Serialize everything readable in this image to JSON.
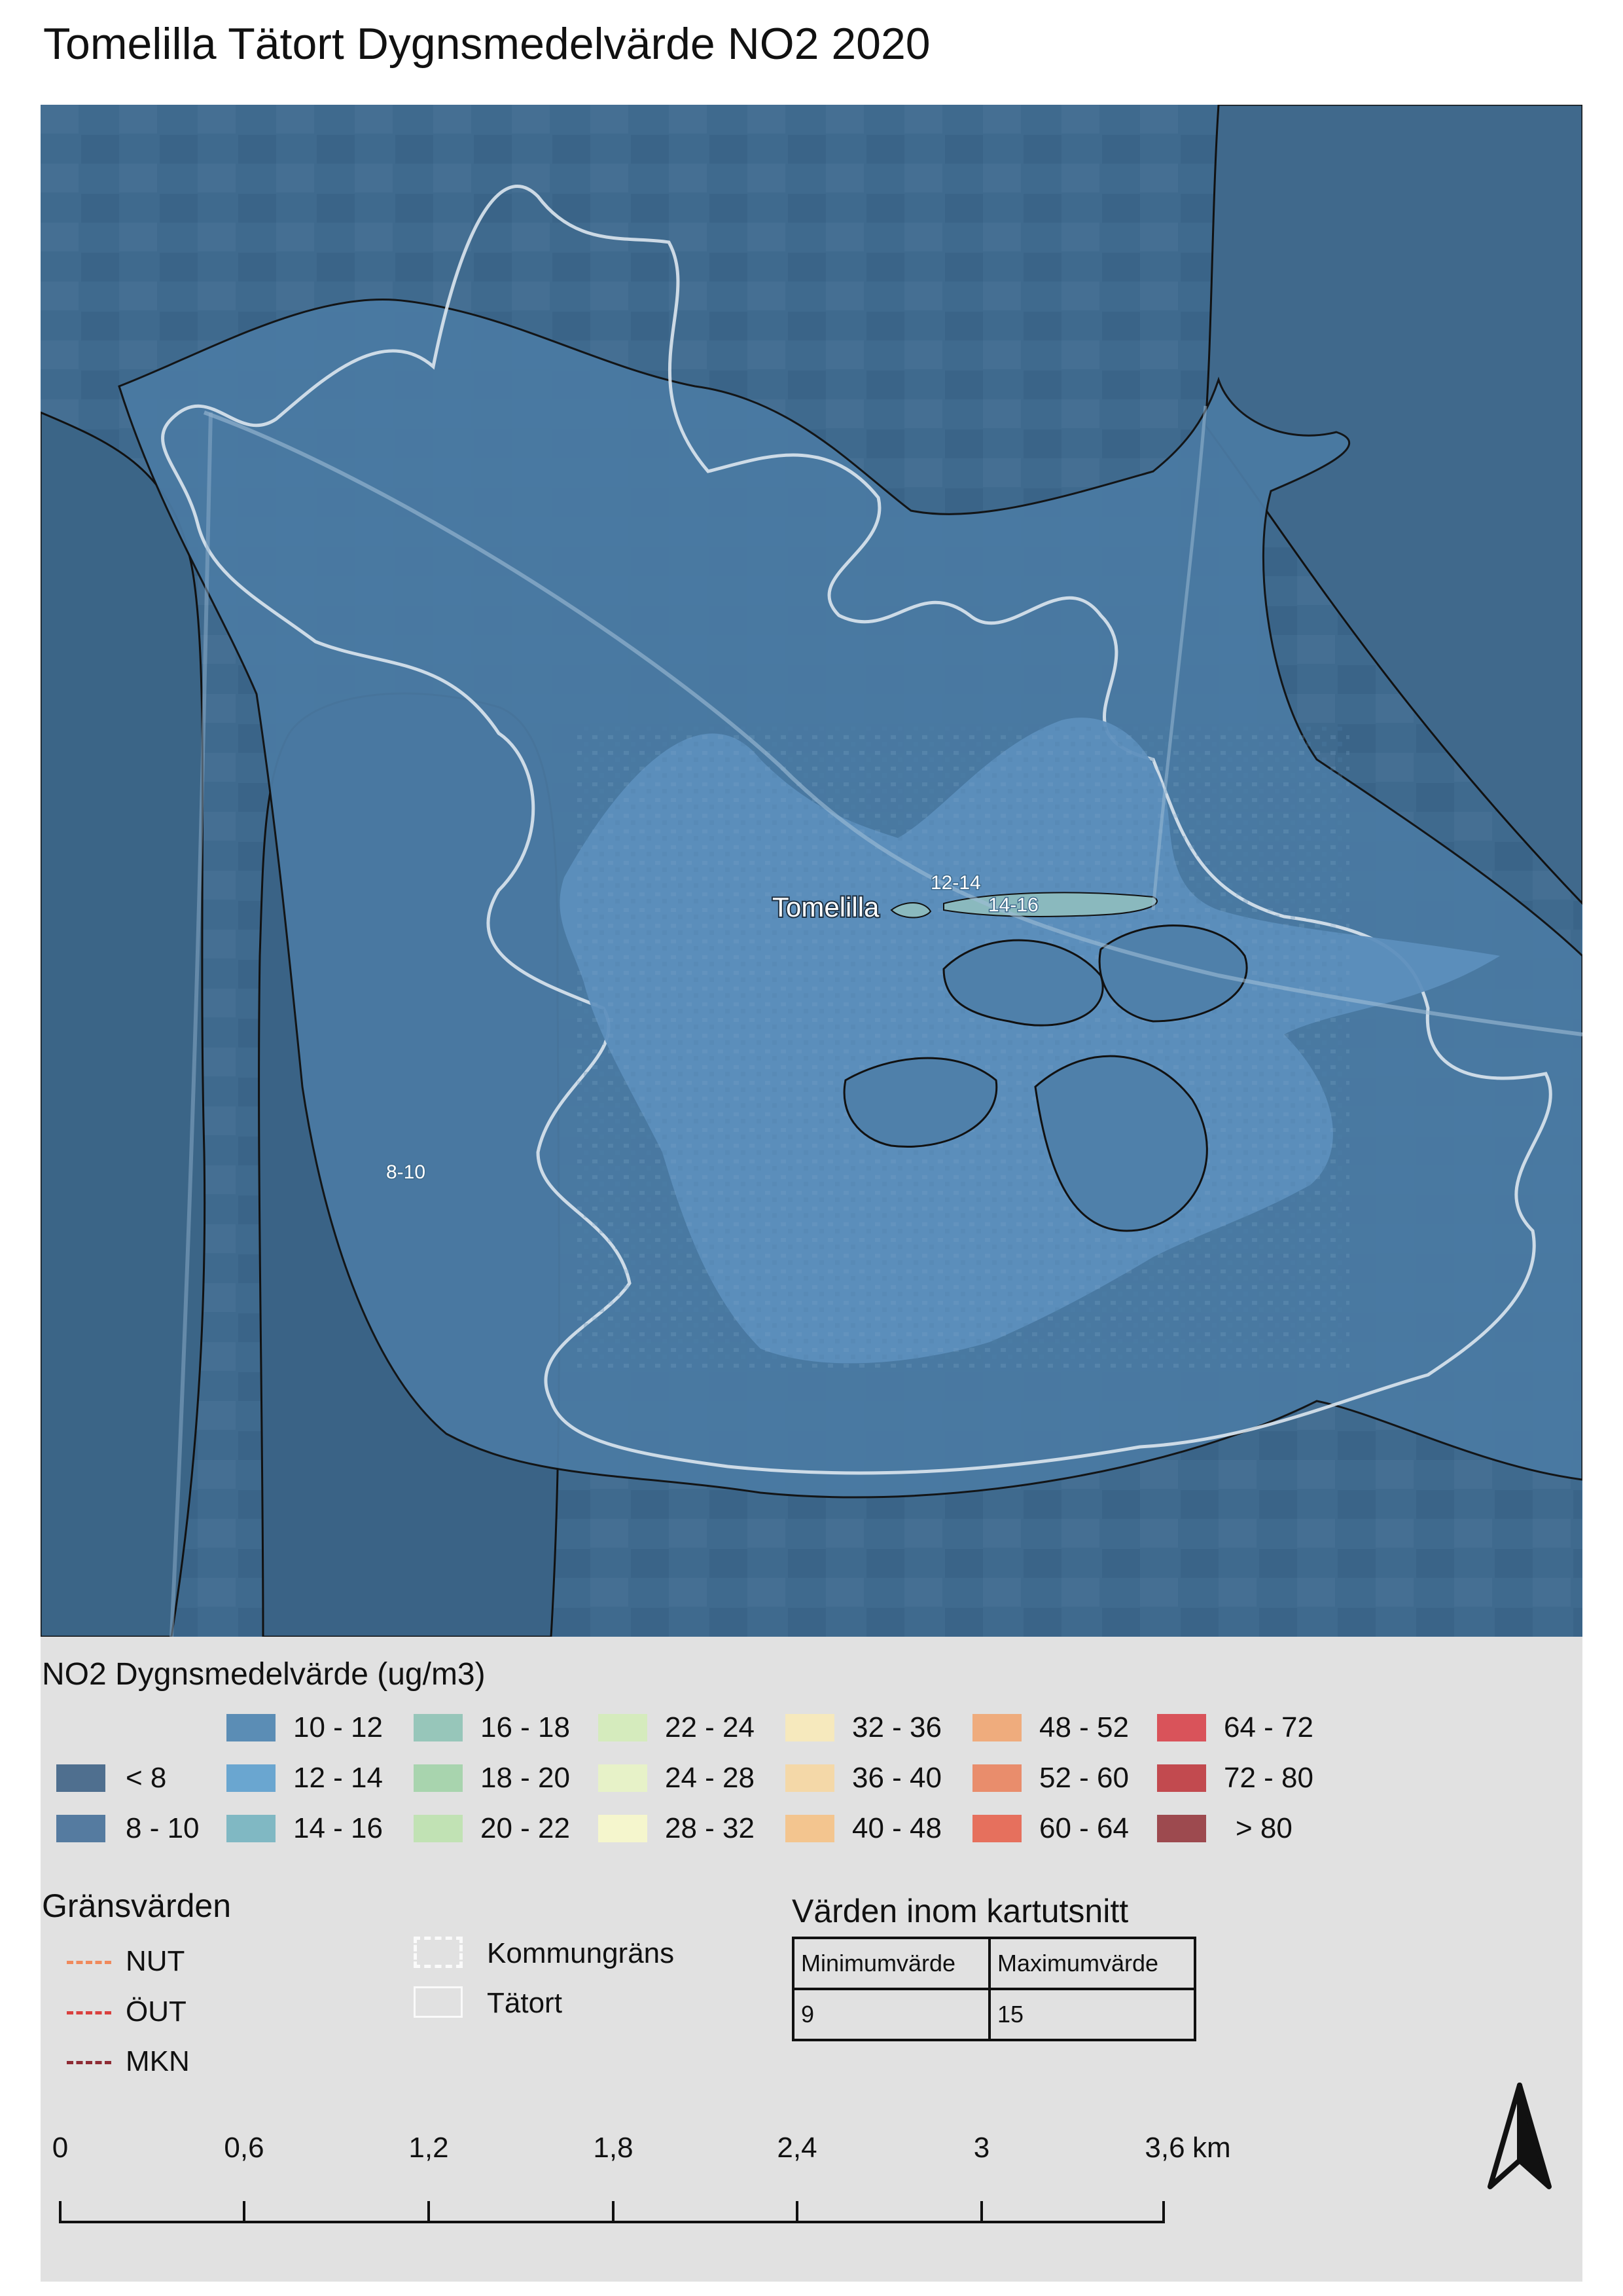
{
  "title": "Tomelilla Tätort Dygnsmedelvärde NO2 2020",
  "map": {
    "place_label": "Tomelilla",
    "zone_labels": [
      "12-14",
      "14-16",
      "8-10"
    ],
    "basemap": "satellite-imagery",
    "colors": {
      "background_zone": "#3f6a8e",
      "inner_zone": "#5d8fbd",
      "core_zone": "#6ea4cf",
      "hotspot": "#8ab9be",
      "tatort_outline": "#dce6ee",
      "zone_outline": "#111111"
    }
  },
  "legend": {
    "title": "NO2 Dygnsmedelvärde (ug/m3)",
    "classes": [
      {
        "label": "< 8",
        "color": "#4f6f8f"
      },
      {
        "label": "8 - 10",
        "color": "#557ba0"
      },
      {
        "label": "10 - 12",
        "color": "#5b8db5"
      },
      {
        "label": "12 - 14",
        "color": "#6aa6d0"
      },
      {
        "label": "14 - 16",
        "color": "#80b8c3"
      },
      {
        "label": "16 - 18",
        "color": "#97c6ba"
      },
      {
        "label": "18 - 20",
        "color": "#a8d4ae"
      },
      {
        "label": "20 - 22",
        "color": "#c1e2b4"
      },
      {
        "label": "22 - 24",
        "color": "#d5ebbd"
      },
      {
        "label": "24 - 28",
        "color": "#e7f2c8"
      },
      {
        "label": "28 - 32",
        "color": "#f5f6cd"
      },
      {
        "label": "32 - 36",
        "color": "#f6e9bd"
      },
      {
        "label": "36 - 40",
        "color": "#f4d8a8"
      },
      {
        "label": "40 - 48",
        "color": "#f3c58f"
      },
      {
        "label": "48 - 52",
        "color": "#efac7d"
      },
      {
        "label": "52 - 60",
        "color": "#e98d6c"
      },
      {
        "label": "60 - 64",
        "color": "#e6705d"
      },
      {
        "label": "64 - 72",
        "color": "#d9535a"
      },
      {
        "label": "72 - 80",
        "color": "#c24a4f"
      },
      {
        "label": "> 80",
        "color": "#9d4a4f"
      }
    ]
  },
  "limits": {
    "title": "Gränsvärden",
    "items": [
      {
        "label": "NUT",
        "color": "#f08a5d"
      },
      {
        "label": "ÖUT",
        "color": "#d9413f"
      },
      {
        "label": "MKN",
        "color": "#8e2b34"
      }
    ],
    "boundaries": [
      {
        "label": "Kommungräns"
      },
      {
        "label": "Tätort"
      }
    ]
  },
  "stats": {
    "title": "Värden inom kartutsnitt",
    "headers": [
      "Minimumvärde",
      "Maximumvärde"
    ],
    "values": [
      "9",
      "15"
    ]
  },
  "scale_bar": {
    "ticks": [
      "0",
      "0,6",
      "1,2",
      "1,8",
      "2,4",
      "3",
      "3,6"
    ],
    "unit": "km"
  },
  "north_arrow": {
    "icon": "north-arrow-icon"
  }
}
